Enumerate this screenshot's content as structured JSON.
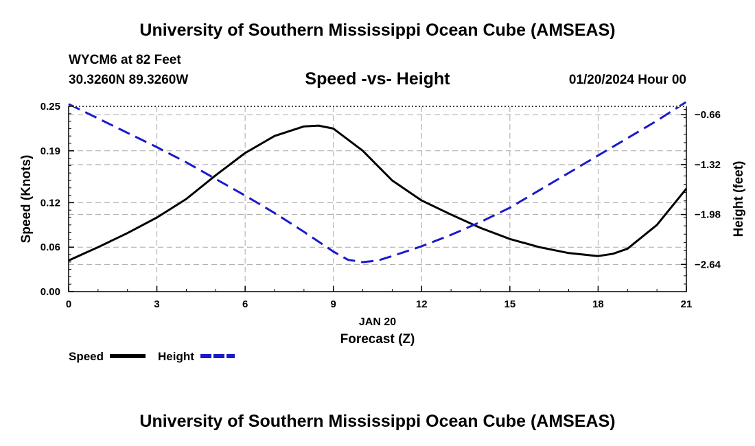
{
  "header": {
    "title": "University of Southern Mississippi Ocean Cube (AMSEAS)",
    "station": "WYCM6 at 82 Feet",
    "coords": "30.3260N  89.3260W",
    "subtitle": "Speed -vs- Height",
    "datetime": "01/20/2024 Hour 00"
  },
  "footer": {
    "title": "University of Southern Mississippi Ocean Cube (AMSEAS)"
  },
  "chart_data": {
    "type": "line",
    "title": "Speed -vs- Height",
    "xlabel": "Forecast (Z)",
    "xsublabel": "JAN 20",
    "ylabel": "Speed (Knots)",
    "y2label": "Height (feet)",
    "xlim": [
      0,
      21
    ],
    "ylim": [
      0,
      0.25
    ],
    "y2lim": [
      -3.0,
      -0.55
    ],
    "xticks": [
      0,
      3,
      6,
      9,
      12,
      15,
      18,
      21
    ],
    "yticks": [
      0,
      0.06,
      0.12,
      0.19,
      0.25
    ],
    "ytick_labels": [
      "0.00",
      "0.06",
      "0.12",
      "0.19",
      "0.25"
    ],
    "y2ticks": [
      -0.66,
      -1.32,
      -1.98,
      -2.64
    ],
    "y2tick_labels": [
      "−0.66",
      "−1.32",
      "−1.98",
      "−2.64"
    ],
    "grid": true,
    "series": [
      {
        "name": "Speed",
        "axis": "left",
        "color": "#000000",
        "style": "solid",
        "x": [
          0,
          1,
          2,
          3,
          4,
          5,
          6,
          7,
          8,
          8.5,
          9,
          10,
          11,
          12,
          13,
          14,
          15,
          16,
          17,
          18,
          18.5,
          19,
          20,
          21
        ],
        "values": [
          0.042,
          0.06,
          0.079,
          0.1,
          0.125,
          0.157,
          0.187,
          0.21,
          0.223,
          0.224,
          0.22,
          0.19,
          0.15,
          0.123,
          0.104,
          0.086,
          0.071,
          0.06,
          0.052,
          0.048,
          0.051,
          0.058,
          0.09,
          0.139
        ]
      },
      {
        "name": "Height",
        "axis": "right",
        "color": "#1a1acc",
        "style": "dashed",
        "x": [
          0,
          1,
          2,
          3,
          4,
          5,
          6,
          7,
          8,
          9,
          9.5,
          10,
          10.5,
          11,
          12,
          13,
          14,
          15,
          16,
          17,
          18,
          19,
          20,
          21
        ],
        "values": [
          -0.52,
          -0.71,
          -0.9,
          -1.09,
          -1.29,
          -1.51,
          -1.73,
          -1.96,
          -2.21,
          -2.47,
          -2.58,
          -2.61,
          -2.59,
          -2.53,
          -2.4,
          -2.25,
          -2.08,
          -1.89,
          -1.66,
          -1.43,
          -1.2,
          -0.97,
          -0.74,
          -0.49
        ]
      }
    ],
    "legend": [
      {
        "label": "Speed",
        "color": "#000000",
        "style": "solid"
      },
      {
        "label": "Height",
        "color": "#1a1acc",
        "style": "dashed"
      }
    ]
  }
}
